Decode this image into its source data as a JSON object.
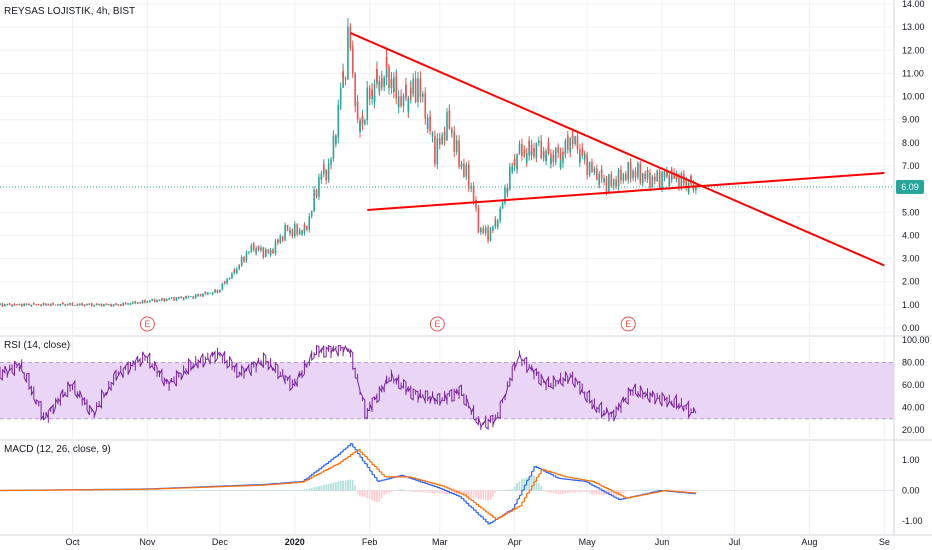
{
  "header": {
    "symbol_title": "REYSAS LOJISTIK, 4h, BIST"
  },
  "price_tag": "6.09",
  "earnings_marker": "E",
  "rsi_title": "RSI (14, close)",
  "macd_title": "MACD (12, 26, close, 9)",
  "colors": {
    "up": "#26a69a",
    "down": "#ef5350",
    "trend": "#ff0000",
    "rsi": "#7b1fa2",
    "rsi_band": "#e9d6f6",
    "macd": "#2962ff",
    "signal": "#ff6d00",
    "price_line": "#26a69a",
    "grid": "#eef0f3"
  },
  "chart_data": [
    {
      "type": "candlestick",
      "title": "REYSAS LOJISTIK, 4h, BIST",
      "ylim": [
        0,
        14
      ],
      "y_ticks": [
        "0.00",
        "1.00",
        "2.00",
        "3.00",
        "4.00",
        "5.00",
        "6.00",
        "7.00",
        "8.00",
        "9.00",
        "10.00",
        "11.00",
        "12.00",
        "13.00",
        "14.00"
      ],
      "x_ticks": [
        "Oct",
        "Nov",
        "Dec",
        "2020",
        "Feb",
        "Mar",
        "Apr",
        "May",
        "Jun",
        "Jul",
        "Aug",
        "Se"
      ],
      "last_price": 6.09,
      "price_path": [
        [
          "2019-09-01",
          1.0
        ],
        [
          "2019-10-01",
          1.02
        ],
        [
          "2019-10-20",
          1.0
        ],
        [
          "2019-11-01",
          1.15
        ],
        [
          "2019-11-20",
          1.35
        ],
        [
          "2019-12-01",
          1.6
        ],
        [
          "2019-12-08",
          2.5
        ],
        [
          "2019-12-15",
          3.5
        ],
        [
          "2019-12-22",
          3.2
        ],
        [
          "2019-12-29",
          4.2
        ],
        [
          "2020-01-06",
          4.2
        ],
        [
          "2020-01-12",
          6.5
        ],
        [
          "2020-01-16",
          7.0
        ],
        [
          "2020-01-20",
          9.5
        ],
        [
          "2020-01-24",
          12.8
        ],
        [
          "2020-01-28",
          8.5
        ],
        [
          "2020-02-01",
          10.0
        ],
        [
          "2020-02-08",
          11.0
        ],
        [
          "2020-02-15",
          9.8
        ],
        [
          "2020-02-22",
          10.5
        ],
        [
          "2020-02-29",
          7.5
        ],
        [
          "2020-03-05",
          9.0
        ],
        [
          "2020-03-10",
          7.2
        ],
        [
          "2020-03-15",
          6.0
        ],
        [
          "2020-03-18",
          4.3
        ],
        [
          "2020-03-22",
          4.0
        ],
        [
          "2020-03-26",
          4.8
        ],
        [
          "2020-03-30",
          6.5
        ],
        [
          "2020-04-03",
          7.5
        ],
        [
          "2020-04-10",
          7.7
        ],
        [
          "2020-04-20",
          7.3
        ],
        [
          "2020-04-25",
          8.2
        ],
        [
          "2020-05-02",
          7.0
        ],
        [
          "2020-05-10",
          6.2
        ],
        [
          "2020-05-20",
          6.8
        ],
        [
          "2020-05-28",
          6.4
        ],
        [
          "2020-06-05",
          6.6
        ],
        [
          "2020-06-15",
          6.09
        ]
      ],
      "trendlines": [
        {
          "name": "upper",
          "from": [
            "2020-01-24",
            12.75
          ],
          "to": [
            "2020-09-01",
            2.7
          ]
        },
        {
          "name": "lower",
          "from": [
            "2020-01-31",
            5.1
          ],
          "to": [
            "2020-09-01",
            6.7
          ]
        }
      ],
      "earnings_dates": [
        "2019-11-01",
        "2020-02-29",
        "2020-05-18"
      ]
    },
    {
      "type": "line",
      "title": "RSI (14, close)",
      "ylim": [
        20,
        100
      ],
      "y_ticks": [
        "20.00",
        "40.00",
        "60.00",
        "80.00",
        "100.00"
      ],
      "band": [
        30,
        80
      ],
      "series": [
        {
          "values_path": [
            [
              "2019-09-01",
              70
            ],
            [
              "2019-09-10",
              78
            ],
            [
              "2019-09-20",
              30
            ],
            [
              "2019-10-01",
              60
            ],
            [
              "2019-10-10",
              35
            ],
            [
              "2019-10-20",
              70
            ],
            [
              "2019-11-01",
              85
            ],
            [
              "2019-11-10",
              60
            ],
            [
              "2019-11-20",
              78
            ],
            [
              "2019-12-01",
              88
            ],
            [
              "2019-12-10",
              70
            ],
            [
              "2019-12-20",
              82
            ],
            [
              "2020-01-01",
              60
            ],
            [
              "2020-01-10",
              90
            ],
            [
              "2020-01-24",
              92
            ],
            [
              "2020-01-31",
              35
            ],
            [
              "2020-02-10",
              68
            ],
            [
              "2020-02-20",
              52
            ],
            [
              "2020-03-01",
              46
            ],
            [
              "2020-03-10",
              55
            ],
            [
              "2020-03-18",
              25
            ],
            [
              "2020-03-25",
              30
            ],
            [
              "2020-04-03",
              85
            ],
            [
              "2020-04-15",
              60
            ],
            [
              "2020-04-25",
              68
            ],
            [
              "2020-05-05",
              40
            ],
            [
              "2020-05-12",
              32
            ],
            [
              "2020-05-20",
              55
            ],
            [
              "2020-06-01",
              48
            ],
            [
              "2020-06-10",
              42
            ],
            [
              "2020-06-15",
              35
            ]
          ]
        }
      ]
    },
    {
      "type": "line+bar",
      "title": "MACD (12, 26, close, 9)",
      "ylim": [
        -1.3,
        1.5
      ],
      "y_ticks": [
        "-1.00",
        "0.00",
        "1.00"
      ],
      "series": [
        {
          "name": "MACD",
          "values_path": [
            [
              "2019-09-01",
              0.0
            ],
            [
              "2019-11-01",
              0.05
            ],
            [
              "2019-12-20",
              0.2
            ],
            [
              "2020-01-05",
              0.3
            ],
            [
              "2020-01-20",
              1.2
            ],
            [
              "2020-01-25",
              1.55
            ],
            [
              "2020-02-05",
              0.3
            ],
            [
              "2020-02-15",
              0.5
            ],
            [
              "2020-03-01",
              0.1
            ],
            [
              "2020-03-10",
              -0.2
            ],
            [
              "2020-03-22",
              -1.1
            ],
            [
              "2020-04-01",
              -0.6
            ],
            [
              "2020-04-10",
              0.8
            ],
            [
              "2020-04-20",
              0.4
            ],
            [
              "2020-05-01",
              0.3
            ],
            [
              "2020-05-15",
              -0.3
            ],
            [
              "2020-06-01",
              0.0
            ],
            [
              "2020-06-15",
              -0.1
            ]
          ]
        },
        {
          "name": "Signal",
          "values_path": [
            [
              "2019-09-01",
              0.0
            ],
            [
              "2019-11-01",
              0.04
            ],
            [
              "2019-12-20",
              0.18
            ],
            [
              "2020-01-05",
              0.28
            ],
            [
              "2020-01-20",
              0.9
            ],
            [
              "2020-01-28",
              1.35
            ],
            [
              "2020-02-08",
              0.45
            ],
            [
              "2020-02-18",
              0.45
            ],
            [
              "2020-03-03",
              0.15
            ],
            [
              "2020-03-12",
              -0.15
            ],
            [
              "2020-03-25",
              -0.95
            ],
            [
              "2020-04-04",
              -0.5
            ],
            [
              "2020-04-13",
              0.7
            ],
            [
              "2020-04-23",
              0.45
            ],
            [
              "2020-05-04",
              0.3
            ],
            [
              "2020-05-18",
              -0.25
            ],
            [
              "2020-06-03",
              0.0
            ],
            [
              "2020-06-15",
              -0.08
            ]
          ]
        }
      ]
    }
  ]
}
